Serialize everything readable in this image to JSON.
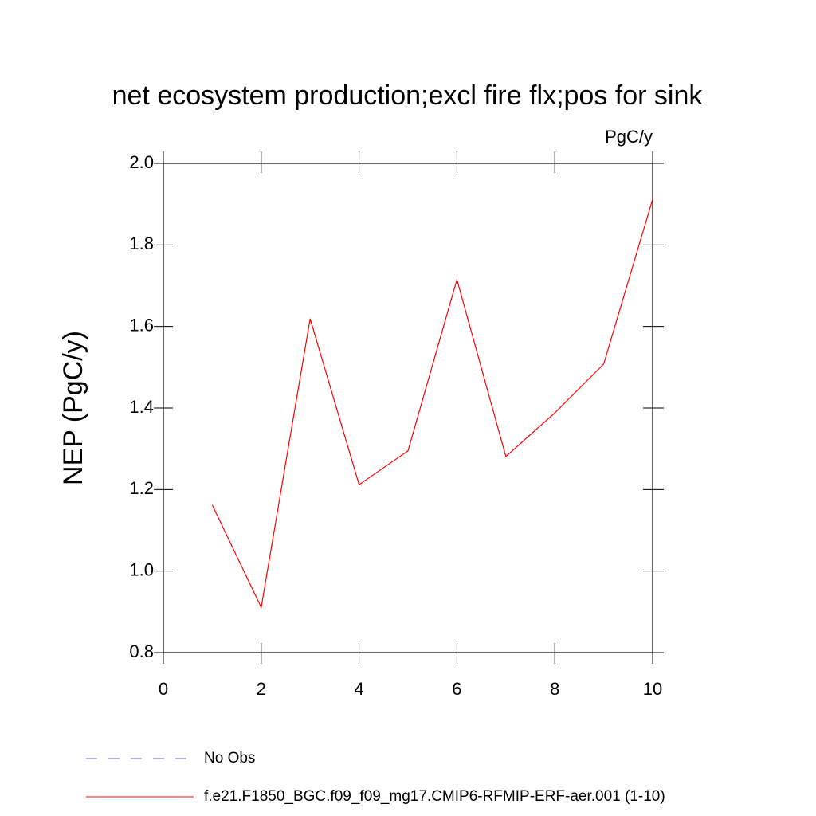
{
  "chart_data": {
    "type": "line",
    "title": "net ecosystem production;excl fire flx;pos for sink",
    "units": "PgC/y",
    "y_label": "NEP  (PgC/y)",
    "x": [
      1,
      2,
      3,
      4,
      5,
      6,
      7,
      8,
      9,
      10
    ],
    "series": [
      {
        "name": "No Obs",
        "color": "#6a5acd",
        "dashed": true,
        "values": [
          null,
          null,
          null,
          null,
          null,
          null,
          null,
          null,
          null,
          null
        ]
      },
      {
        "name": "f.e21.F1850_BGC.f09_f09_mg17.CMIP6-RFMIP-ERF-aer.001 (1-10)",
        "color": "#ff0000",
        "dashed": false,
        "values": [
          1.162,
          0.911,
          1.619,
          1.212,
          1.295,
          1.715,
          1.281,
          1.388,
          1.508,
          1.912
        ]
      }
    ],
    "xlim": [
      0,
      10
    ],
    "xticks": [
      0,
      2,
      4,
      6,
      8,
      10
    ],
    "ylim": [
      0.8,
      2.0
    ],
    "yticks": [
      0.8,
      {
        "value": 1.0,
        "label": "1.0"
      },
      1.2,
      1.4,
      1.6,
      1.8,
      {
        "value": 2.0,
        "label": "2.0"
      }
    ],
    "grid": false
  }
}
